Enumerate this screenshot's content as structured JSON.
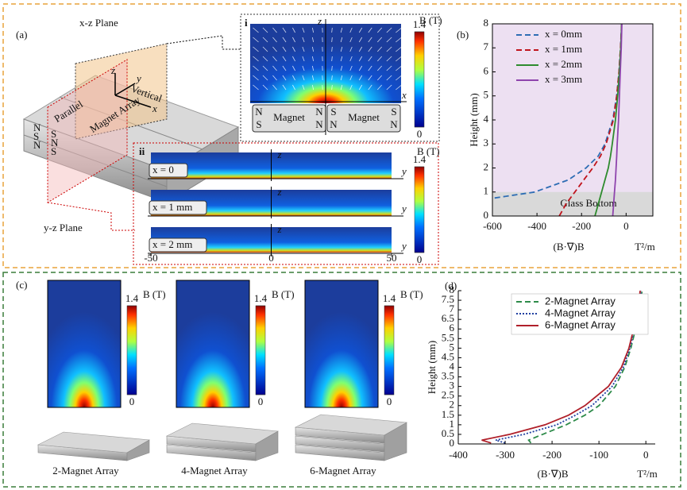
{
  "panel_a": {
    "label": "(a)",
    "xz_plane": "x-z Plane",
    "yz_plane": "y-z Plane",
    "magnet_array": "Magnet Array",
    "parallel": "Parallel",
    "vertical": "Vertical",
    "axes": [
      "x",
      "y",
      "z"
    ],
    "end_poles": [
      [
        "N",
        "S",
        "N"
      ],
      [
        "S",
        "N",
        "S"
      ]
    ],
    "inset_i": {
      "label": "i",
      "axis_z": "z",
      "axis_x": "x",
      "colorbar": {
        "title": "B (T)",
        "lim": [
          0,
          1.4
        ],
        "ticks": [
          0,
          1.4
        ]
      },
      "magnets": [
        {
          "label": "Magnet",
          "poles": [
            "N",
            "S",
            "N",
            "N"
          ]
        },
        {
          "label": "Magnet",
          "poles": [
            "S",
            "N",
            "S",
            "N"
          ]
        }
      ]
    },
    "inset_ii": {
      "label": "ii",
      "colorbar": {
        "title": "B (T)",
        "lim": [
          0,
          1.4
        ],
        "ticks": [
          0,
          1.4
        ]
      },
      "xlim": [
        -50,
        50
      ],
      "xticks": [
        -50,
        0,
        50
      ],
      "strips": [
        {
          "label": "x = 0",
          "axis_z": "z",
          "axis_y": "y"
        },
        {
          "label": "x = 1 mm",
          "axis_z": "z",
          "axis_y": "y"
        },
        {
          "label": "x = 2 mm",
          "axis_z": "z",
          "axis_y": "y"
        }
      ]
    }
  },
  "panel_c": {
    "label": "(c)",
    "maps": [
      {
        "name": "2-Magnet Array",
        "colorbar": {
          "title": "B (T)",
          "lim": [
            0,
            1.4
          ],
          "ticks": [
            0,
            1.4
          ]
        }
      },
      {
        "name": "4-Magnet Array",
        "colorbar": {
          "title": "B (T)",
          "lim": [
            0,
            1.4
          ],
          "ticks": [
            0,
            1.4
          ]
        }
      },
      {
        "name": "6-Magnet Array",
        "colorbar": {
          "title": "B (T)",
          "lim": [
            0,
            1.4
          ],
          "ticks": [
            0,
            1.4
          ]
        }
      }
    ]
  },
  "chart_data": [
    {
      "type": "line",
      "label": "(b)",
      "x_label": "(B·∇)B",
      "x_unit": "T²/m",
      "y_label": "Height (mm)",
      "background": "#ede0f2",
      "frame": true,
      "shaded_region": {
        "label": "Glass Bottom",
        "ylim": [
          0,
          1
        ],
        "color": "#d9d9d9"
      },
      "xlim": [
        -600,
        120
      ],
      "xticks": [
        -600,
        -400,
        -200,
        0
      ],
      "ylim": [
        0,
        8
      ],
      "yticks": [
        0,
        1,
        2,
        3,
        4,
        5,
        6,
        7,
        8
      ],
      "legend": "upper left",
      "series": [
        {
          "name": "x = 0mm",
          "color": "#2e6db4",
          "style": "dashed",
          "x": [
            -590,
            -410,
            -260,
            -180,
            -125,
            -95,
            -60,
            -42,
            -32,
            -25,
            -20
          ],
          "y": [
            0.75,
            1,
            1.5,
            2,
            2.5,
            3,
            4,
            5,
            6,
            7,
            8
          ]
        },
        {
          "name": "x = 1mm",
          "color": "#c0141c",
          "style": "dashed",
          "x": [
            -300,
            -270,
            -230,
            -190,
            -150,
            -115,
            -90,
            -57,
            -42,
            -32,
            -25,
            -20
          ],
          "y": [
            0,
            0.5,
            1,
            1.5,
            2,
            2.5,
            3,
            4,
            5,
            6,
            7,
            8
          ]
        },
        {
          "name": "x = 2mm",
          "color": "#2e8b2e",
          "style": "solid",
          "x": [
            -140,
            -125,
            -110,
            -95,
            -80,
            -70,
            -62,
            -48,
            -38,
            -30,
            -24,
            -20
          ],
          "y": [
            0,
            0.5,
            1,
            1.5,
            2,
            2.5,
            3,
            4,
            5,
            6,
            7,
            8
          ]
        },
        {
          "name": "x = 3mm",
          "color": "#8e44ad",
          "style": "solid",
          "x": [
            -60,
            -56,
            -52,
            -48,
            -45,
            -42,
            -40,
            -34,
            -30,
            -26,
            -22,
            -19
          ],
          "y": [
            0,
            0.5,
            1,
            1.5,
            2,
            2.5,
            3,
            4,
            5,
            6,
            7,
            8
          ]
        }
      ]
    },
    {
      "type": "line",
      "label": "(d)",
      "x_label": "(B·∇)B",
      "x_unit": "T²/m",
      "y_label": "Height (mm)",
      "frame": false,
      "xlim": [
        -400,
        20
      ],
      "xticks": [
        -400,
        -300,
        -200,
        -100,
        0
      ],
      "ylim": [
        0,
        8
      ],
      "yticks": [
        0,
        0.5,
        1,
        1.5,
        2,
        2.5,
        3,
        3.5,
        4,
        4.5,
        5,
        5.5,
        6,
        6.5,
        7,
        7.5,
        8
      ],
      "legend": "upper right",
      "series": [
        {
          "name": "2-Magnet Array",
          "color": "#2e8b4a",
          "style": "dashed",
          "x": [
            -245,
            -250,
            -220,
            -170,
            -130,
            -100,
            -65,
            -45,
            -32,
            -22,
            -14,
            -8
          ],
          "y": [
            0.05,
            0.2,
            0.5,
            1,
            1.5,
            2,
            3,
            4,
            5,
            6,
            7,
            8
          ]
        },
        {
          "name": "4-Magnet Array",
          "color": "#1f3fa0",
          "style": "dotted",
          "x": [
            -300,
            -320,
            -260,
            -190,
            -150,
            -115,
            -72,
            -48,
            -34,
            -24,
            -16,
            -10
          ],
          "y": [
            0.05,
            0.2,
            0.5,
            1,
            1.5,
            2,
            3,
            4,
            5,
            6,
            7,
            8
          ]
        },
        {
          "name": "6-Magnet Array",
          "color": "#b0202a",
          "style": "solid",
          "x": [
            -330,
            -350,
            -290,
            -215,
            -165,
            -130,
            -80,
            -52,
            -36,
            -26,
            -18,
            -12
          ],
          "y": [
            0.05,
            0.2,
            0.5,
            1,
            1.5,
            2,
            3,
            4,
            5,
            6,
            7,
            8
          ]
        }
      ]
    }
  ]
}
